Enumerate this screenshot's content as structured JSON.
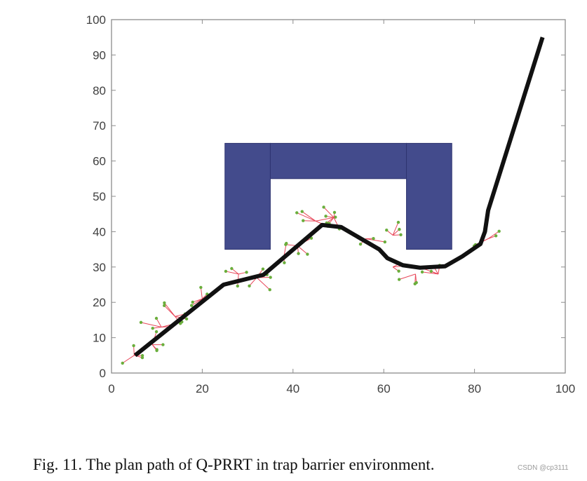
{
  "chart_data": {
    "type": "line",
    "title": "",
    "xlabel": "",
    "ylabel": "",
    "xlim": [
      0,
      100
    ],
    "ylim": [
      0,
      100
    ],
    "x_ticks": [
      0,
      20,
      40,
      60,
      80,
      100
    ],
    "y_ticks": [
      0,
      10,
      20,
      30,
      40,
      50,
      60,
      70,
      80,
      90,
      100
    ],
    "grid": false,
    "legend": null,
    "obstacles": [
      {
        "name": "left-block",
        "x": 25,
        "y": 35,
        "width": 10,
        "height": 30
      },
      {
        "name": "top-bar",
        "x": 35,
        "y": 55,
        "width": 30,
        "height": 10
      },
      {
        "name": "right-block",
        "x": 65,
        "y": 35,
        "width": 10,
        "height": 30
      }
    ],
    "series": [
      {
        "name": "planned-path",
        "x": [
          5.2,
          24.7,
          33.5,
          46.4,
          50.6,
          59.0,
          60.8,
          64.2,
          68.0,
          73.5,
          77.3,
          81.3,
          82.3,
          83.0,
          95.0
        ],
        "y": [
          5.0,
          25.0,
          27.8,
          41.9,
          41.3,
          35.0,
          32.5,
          30.5,
          29.8,
          30.2,
          33.0,
          36.5,
          40.0,
          46.0,
          95.0
        ]
      }
    ],
    "sample_tree_clusters": [
      {
        "x": 5,
        "y": 5
      },
      {
        "x": 9,
        "y": 8
      },
      {
        "x": 11,
        "y": 13
      },
      {
        "x": 14,
        "y": 16
      },
      {
        "x": 20,
        "y": 21
      },
      {
        "x": 28,
        "y": 28
      },
      {
        "x": 32,
        "y": 27
      },
      {
        "x": 38,
        "y": 33
      },
      {
        "x": 41,
        "y": 36
      },
      {
        "x": 45,
        "y": 43
      },
      {
        "x": 49,
        "y": 44
      },
      {
        "x": 56,
        "y": 38
      },
      {
        "x": 62,
        "y": 39
      },
      {
        "x": 62,
        "y": 30
      },
      {
        "x": 67,
        "y": 28
      },
      {
        "x": 72,
        "y": 28
      },
      {
        "x": 83,
        "y": 38
      }
    ],
    "colors": {
      "path": "#111111",
      "obstacle": "#434B8C",
      "obstacle_edge": "#2E3470",
      "tree_edge": "#E8475A",
      "tree_node": "#6AAE3C",
      "axis": "#8C8C8C"
    }
  },
  "caption": "Fig. 11. The plan path of Q-PRRT in trap barrier environment.",
  "watermark": "CSDN @cp3111"
}
